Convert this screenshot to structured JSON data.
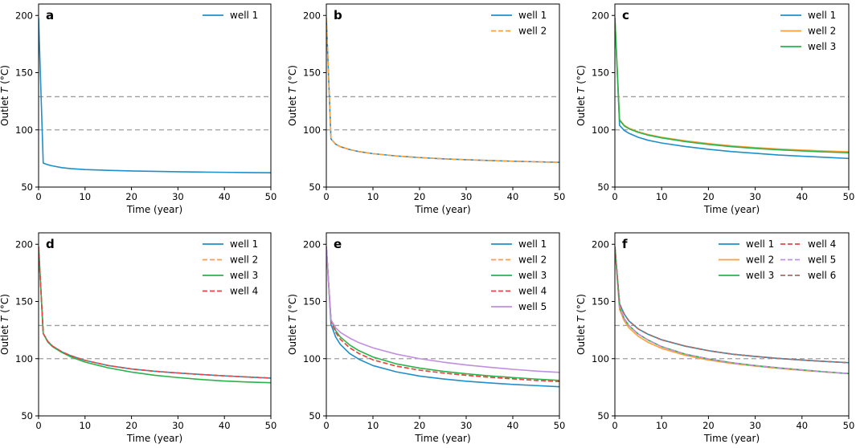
{
  "colors": {
    "well_1": "#1f8fc9",
    "well_2": "#ff9f3a",
    "well_3": "#2ab34b",
    "well_4": "#e54545",
    "well_5": "#c28ee0",
    "well_6": "#a37168",
    "reference": "#9e9e9e"
  },
  "chart_data": [
    {
      "type": "line",
      "panel": "a",
      "xlabel": "Time (year)",
      "ylabel_prefix": "Outlet ",
      "ylabel_var": "T",
      "ylabel_suffix": " (°C)",
      "xlim": [
        0,
        50
      ],
      "ylim": [
        50,
        210
      ],
      "xticks": [
        0,
        10,
        20,
        30,
        40,
        50
      ],
      "yticks": [
        50,
        100,
        150,
        200
      ],
      "reference_lines": [
        129,
        100
      ],
      "legend": {
        "location": "top-right",
        "columns": 1
      },
      "x": [
        0,
        1,
        2,
        3,
        5,
        7,
        10,
        15,
        20,
        25,
        30,
        35,
        40,
        45,
        50
      ],
      "series": [
        {
          "name": "well 1",
          "style": "solid",
          "color_key": "well_1",
          "values": [
            198,
            71,
            69.5,
            68.5,
            67.0,
            66.1,
            65.3,
            64.6,
            64.1,
            63.7,
            63.4,
            63.1,
            62.9,
            62.7,
            62.5
          ]
        }
      ]
    },
    {
      "type": "line",
      "panel": "b",
      "xlabel": "Time (year)",
      "ylabel_prefix": "Outlet ",
      "ylabel_var": "T",
      "ylabel_suffix": " (°C)",
      "xlim": [
        0,
        50
      ],
      "ylim": [
        50,
        210
      ],
      "xticks": [
        0,
        10,
        20,
        30,
        40,
        50
      ],
      "yticks": [
        50,
        100,
        150,
        200
      ],
      "reference_lines": [
        129,
        100
      ],
      "legend": {
        "location": "top-right",
        "columns": 1
      },
      "x": [
        0,
        1,
        2,
        3,
        5,
        7,
        10,
        15,
        20,
        25,
        30,
        35,
        40,
        45,
        50
      ],
      "series": [
        {
          "name": "well 1",
          "style": "solid",
          "color_key": "well_1",
          "values": [
            198,
            92,
            87.5,
            85.3,
            82.8,
            81.0,
            79.2,
            77.2,
            75.8,
            74.7,
            73.9,
            73.2,
            72.6,
            72.1,
            71.6
          ]
        },
        {
          "name": "well 2",
          "style": "dashed",
          "color_key": "well_2",
          "values": [
            198,
            92,
            87.5,
            85.3,
            82.8,
            81.0,
            79.2,
            77.2,
            75.8,
            74.7,
            73.9,
            73.2,
            72.6,
            72.1,
            71.6
          ]
        }
      ]
    },
    {
      "type": "line",
      "panel": "c",
      "xlabel": "Time (year)",
      "ylabel_prefix": "Outlet ",
      "ylabel_var": "T",
      "ylabel_suffix": " (°C)",
      "xlim": [
        0,
        50
      ],
      "ylim": [
        50,
        210
      ],
      "xticks": [
        0,
        10,
        20,
        30,
        40,
        50
      ],
      "yticks": [
        50,
        100,
        150,
        200
      ],
      "reference_lines": [
        129,
        100
      ],
      "legend": {
        "location": "top-right",
        "columns": 1
      },
      "x": [
        0,
        1,
        2,
        3,
        5,
        7,
        10,
        15,
        20,
        25,
        30,
        35,
        40,
        45,
        50
      ],
      "series": [
        {
          "name": "well 1",
          "style": "solid",
          "color_key": "well_1",
          "values": [
            198,
            104,
            99.5,
            97.0,
            93.5,
            91.0,
            88.5,
            85.5,
            83.0,
            81.0,
            79.5,
            78.0,
            77.0,
            76.0,
            75.0
          ]
        },
        {
          "name": "well 2",
          "style": "solid",
          "color_key": "well_2",
          "values": [
            198,
            109,
            104,
            101.5,
            98.3,
            96.0,
            93.5,
            90.5,
            88.0,
            86.0,
            84.5,
            83.3,
            82.3,
            81.5,
            80.8
          ]
        },
        {
          "name": "well 3",
          "style": "solid",
          "color_key": "well_3",
          "values": [
            198,
            108.5,
            103.5,
            101.0,
            97.8,
            95.5,
            93.0,
            89.8,
            87.3,
            85.3,
            83.8,
            82.6,
            81.6,
            80.7,
            80.0
          ]
        }
      ]
    },
    {
      "type": "line",
      "panel": "d",
      "xlabel": "Time (year)",
      "ylabel_prefix": "Outlet ",
      "ylabel_var": "T",
      "ylabel_suffix": " (°C)",
      "xlim": [
        0,
        50
      ],
      "ylim": [
        50,
        210
      ],
      "xticks": [
        0,
        10,
        20,
        30,
        40,
        50
      ],
      "yticks": [
        50,
        100,
        150,
        200
      ],
      "reference_lines": [
        129,
        100
      ],
      "legend": {
        "location": "top-right",
        "columns": 1
      },
      "x": [
        0,
        1,
        2,
        3,
        5,
        7,
        10,
        15,
        20,
        25,
        30,
        35,
        40,
        45,
        50
      ],
      "series": [
        {
          "name": "well 1",
          "style": "solid",
          "color_key": "well_1",
          "values": [
            198,
            122,
            115,
            111,
            106,
            102.5,
            98.5,
            94.0,
            91.0,
            89.0,
            87.5,
            86.2,
            85.0,
            84.0,
            83.0
          ]
        },
        {
          "name": "well 2",
          "style": "dashed",
          "color_key": "well_2",
          "values": [
            198,
            122,
            115,
            111,
            106,
            102.5,
            98.5,
            94.0,
            91.0,
            89.0,
            87.5,
            86.2,
            85.0,
            84.0,
            83.0
          ]
        },
        {
          "name": "well 3",
          "style": "solid",
          "color_key": "well_3",
          "values": [
            198,
            122,
            114.5,
            110.5,
            105.5,
            101.5,
            97.0,
            92.0,
            88.3,
            85.5,
            83.5,
            81.8,
            80.5,
            79.6,
            79.0
          ]
        },
        {
          "name": "well 4",
          "style": "dashed",
          "color_key": "well_4",
          "values": [
            198,
            122,
            115,
            111,
            106,
            102.5,
            98.5,
            94.0,
            91.0,
            89.0,
            87.5,
            86.2,
            85.0,
            84.0,
            83.0
          ]
        }
      ]
    },
    {
      "type": "line",
      "panel": "e",
      "xlabel": "Time (year)",
      "ylabel_prefix": "Outlet ",
      "ylabel_var": "T",
      "ylabel_suffix": " (°C)",
      "xlim": [
        0,
        50
      ],
      "ylim": [
        50,
        210
      ],
      "xticks": [
        0,
        10,
        20,
        30,
        40,
        50
      ],
      "yticks": [
        50,
        100,
        150,
        200
      ],
      "reference_lines": [
        129,
        100
      ],
      "legend": {
        "location": "top-right",
        "columns": 1
      },
      "x": [
        0,
        1,
        2,
        3,
        5,
        7,
        10,
        15,
        20,
        25,
        30,
        35,
        40,
        45,
        50
      ],
      "series": [
        {
          "name": "well 1",
          "style": "solid",
          "color_key": "well_1",
          "values": [
            198,
            130,
            119,
            112.5,
            104.5,
            99.5,
            94.0,
            88.5,
            84.8,
            82.3,
            80.3,
            78.8,
            77.5,
            76.5,
            75.5
          ]
        },
        {
          "name": "well 2",
          "style": "dashed",
          "color_key": "well_2",
          "values": [
            198,
            133,
            123,
            117,
            109.5,
            104.5,
            99.0,
            93.5,
            90.0,
            87.5,
            85.5,
            83.8,
            82.4,
            81.0,
            80.0
          ]
        },
        {
          "name": "well 3",
          "style": "solid",
          "color_key": "well_3",
          "values": [
            198,
            134,
            124.5,
            119,
            112,
            107,
            101.5,
            95.5,
            91.8,
            89.0,
            86.8,
            85.0,
            83.5,
            82.2,
            81.0
          ]
        },
        {
          "name": "well 4",
          "style": "dashed",
          "color_key": "well_4",
          "values": [
            198,
            133,
            123,
            117,
            109.5,
            104.5,
            99.0,
            93.5,
            90.0,
            87.5,
            85.5,
            83.8,
            82.4,
            81.0,
            80.0
          ]
        },
        {
          "name": "well 5",
          "style": "solid",
          "color_key": "well_5",
          "values": [
            198,
            134,
            127,
            123,
            118,
            114,
            109.5,
            104,
            100,
            97,
            94.5,
            92.5,
            90.7,
            89.2,
            88.0
          ]
        }
      ]
    },
    {
      "type": "line",
      "panel": "f",
      "xlabel": "Time (year)",
      "ylabel_prefix": "Outlet ",
      "ylabel_var": "T",
      "ylabel_suffix": " (°C)",
      "xlim": [
        0,
        50
      ],
      "ylim": [
        50,
        210
      ],
      "xticks": [
        0,
        10,
        20,
        30,
        40,
        50
      ],
      "yticks": [
        50,
        100,
        150,
        200
      ],
      "reference_lines": [
        129,
        100
      ],
      "legend": {
        "location": "top-right",
        "columns": 2
      },
      "x": [
        0,
        1,
        2,
        3,
        5,
        7,
        10,
        15,
        20,
        25,
        30,
        35,
        40,
        45,
        50
      ],
      "series": [
        {
          "name": "well 1",
          "style": "solid",
          "color_key": "well_1",
          "values": [
            198,
            148,
            139,
            133,
            126,
            121.5,
            116.5,
            111,
            107,
            104,
            102,
            100.2,
            98.8,
            97.6,
            96.5
          ]
        },
        {
          "name": "well 2",
          "style": "solid",
          "color_key": "well_2",
          "values": [
            198,
            143,
            133,
            127,
            119.5,
            114.5,
            109,
            103,
            98.8,
            95.8,
            93.5,
            91.5,
            89.8,
            88.3,
            87.0
          ]
        },
        {
          "name": "well 3",
          "style": "solid",
          "color_key": "well_3",
          "values": [
            198,
            145,
            135,
            129,
            121.5,
            116.5,
            110.5,
            104,
            99.8,
            96.5,
            94.0,
            92.0,
            90.2,
            88.5,
            87.0
          ]
        },
        {
          "name": "well 4",
          "style": "dashed",
          "color_key": "well_4",
          "values": [
            198,
            148,
            139,
            133,
            126,
            121.5,
            116.5,
            111,
            107,
            104,
            102,
            100.2,
            98.8,
            97.6,
            96.5
          ]
        },
        {
          "name": "well 5",
          "style": "dashed",
          "color_key": "well_5",
          "values": [
            198,
            145,
            135,
            129,
            121.5,
            116.5,
            110.5,
            104,
            99.8,
            96.5,
            94.0,
            92.0,
            90.2,
            88.5,
            87.0
          ]
        },
        {
          "name": "well 6",
          "style": "dashed",
          "color_key": "well_6",
          "values": [
            198,
            148,
            139,
            133,
            126,
            121.5,
            116.5,
            111,
            107,
            104,
            102,
            100.2,
            98.8,
            97.6,
            96.5
          ]
        }
      ]
    }
  ]
}
